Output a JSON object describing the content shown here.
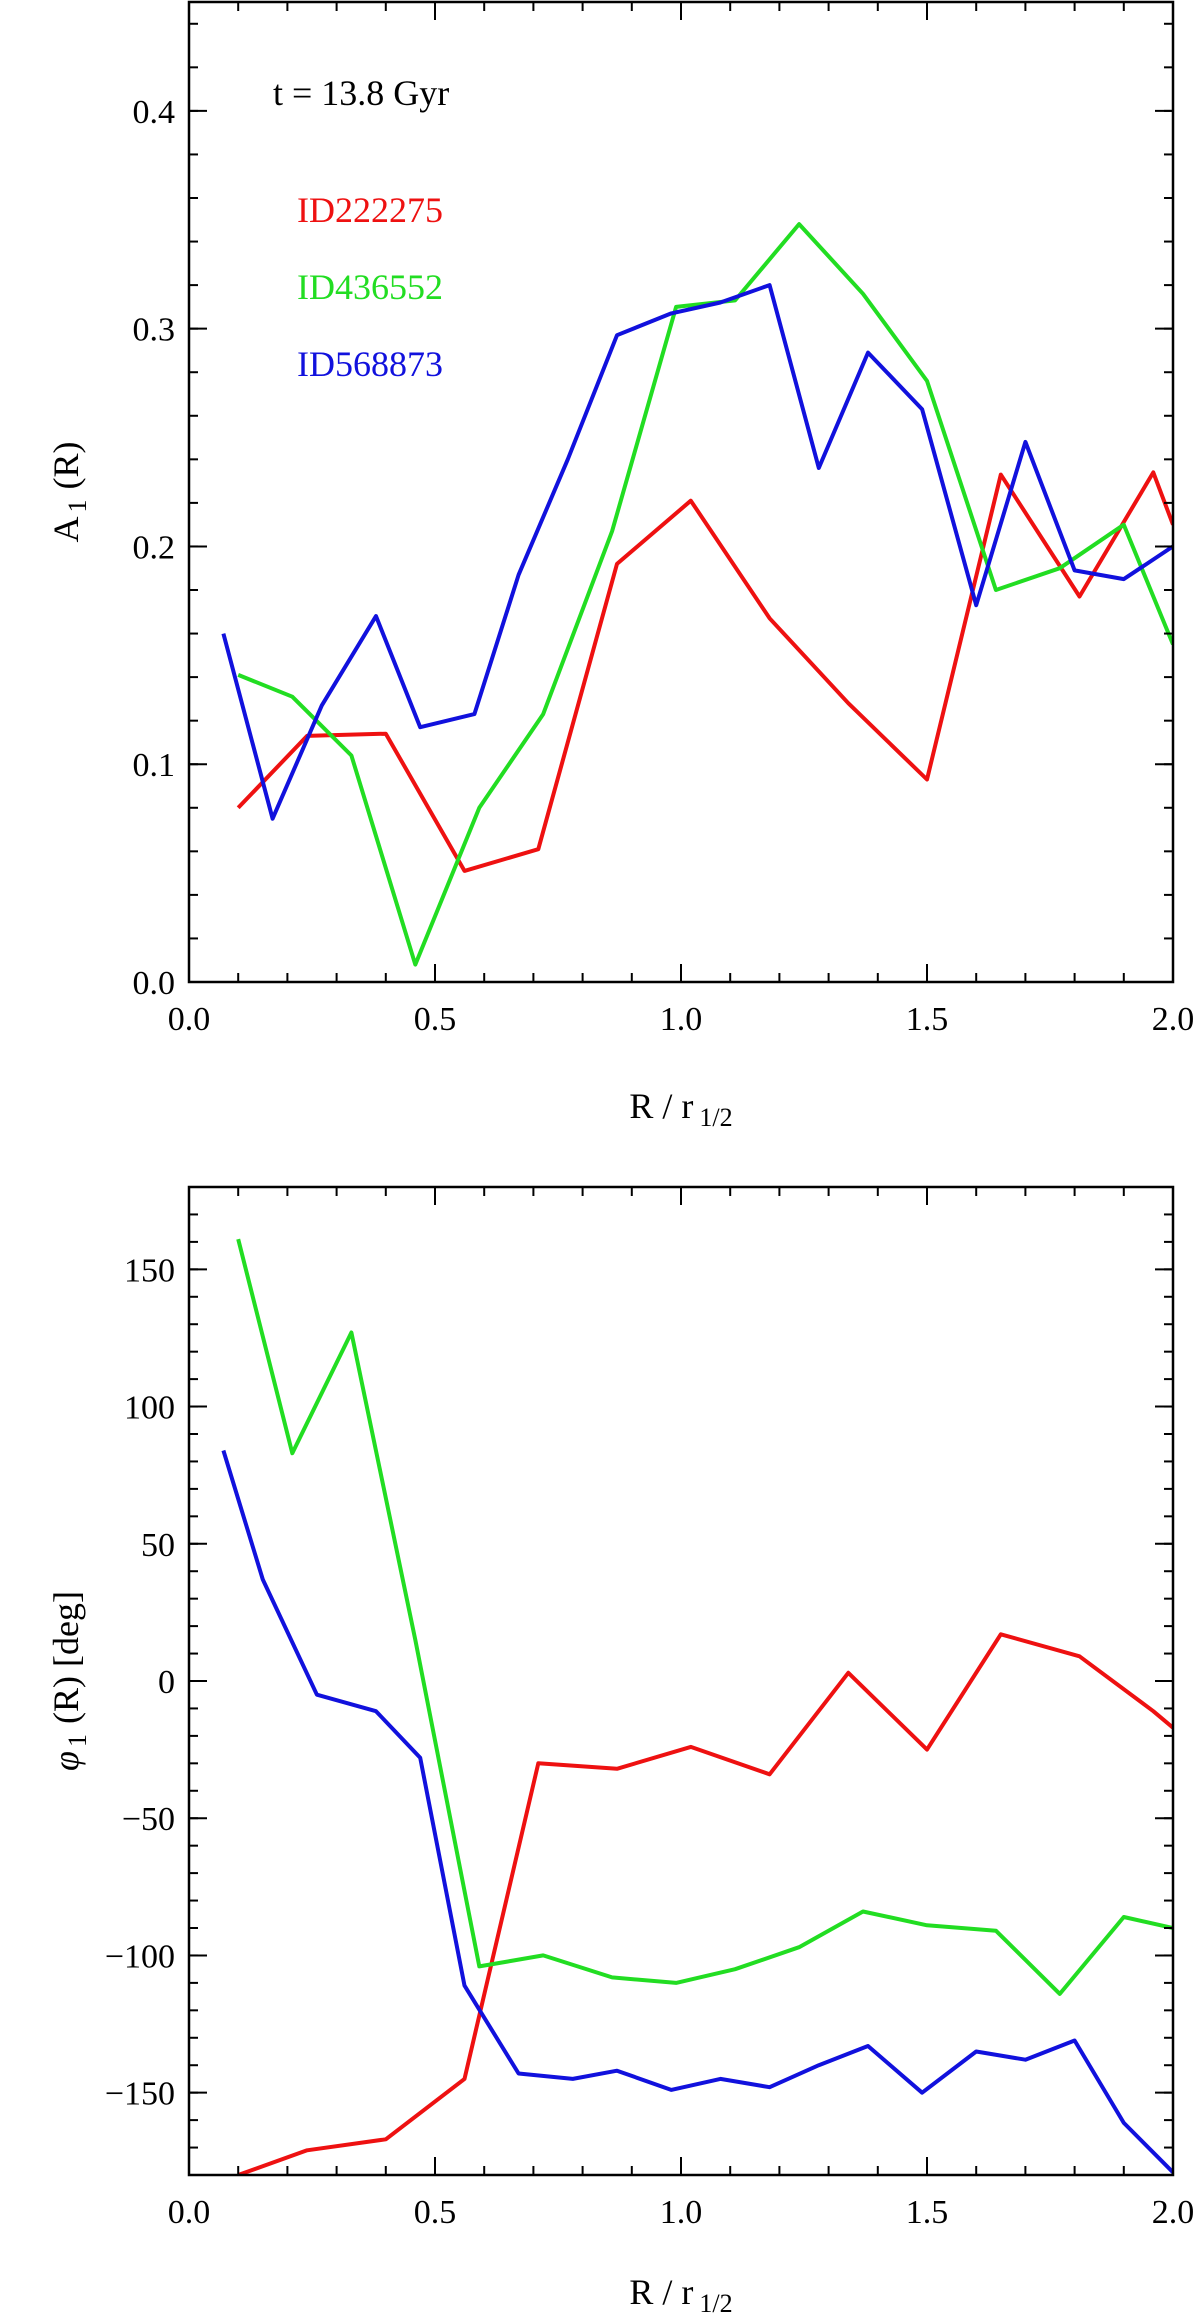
{
  "chart_data": [
    {
      "type": "line",
      "annotation": "t = 13.8 Gyr",
      "xlabel": "R / r",
      "xlabel_sub": "1/2",
      "ylabel": "A",
      "ylabel_sub": "1",
      "ylabel_suffix": "(R)",
      "xlim": [
        0.0,
        2.0
      ],
      "ylim": [
        0.0,
        0.45
      ],
      "xticks": [
        0.0,
        0.5,
        1.0,
        1.5,
        2.0
      ],
      "xtick_labels": [
        "0.0",
        "0.5",
        "1.0",
        "1.5",
        "2.0"
      ],
      "yticks": [
        0.0,
        0.1,
        0.2,
        0.3,
        0.4
      ],
      "ytick_labels": [
        "0.0",
        "0.1",
        "0.2",
        "0.3",
        "0.4"
      ],
      "legend_placement": "top-left",
      "series": [
        {
          "name": "ID222275",
          "color": "#ee1111",
          "x": [
            0.1,
            0.24,
            0.4,
            0.56,
            0.71,
            0.87,
            1.02,
            1.18,
            1.34,
            1.5,
            1.65,
            1.81,
            1.96,
            2.0
          ],
          "y": [
            0.08,
            0.113,
            0.114,
            0.051,
            0.061,
            0.192,
            0.221,
            0.167,
            0.128,
            0.093,
            0.233,
            0.177,
            0.234,
            0.21
          ]
        },
        {
          "name": "ID436552",
          "color": "#22dd22",
          "x": [
            0.1,
            0.21,
            0.33,
            0.46,
            0.59,
            0.72,
            0.86,
            0.99,
            1.11,
            1.24,
            1.37,
            1.5,
            1.64,
            1.77,
            1.9,
            2.0
          ],
          "y": [
            0.141,
            0.131,
            0.104,
            0.008,
            0.08,
            0.123,
            0.207,
            0.31,
            0.313,
            0.348,
            0.316,
            0.276,
            0.18,
            0.19,
            0.21,
            0.155
          ]
        },
        {
          "name": "ID568873",
          "color": "#1111dd",
          "x": [
            0.07,
            0.17,
            0.27,
            0.38,
            0.47,
            0.58,
            0.67,
            0.77,
            0.87,
            0.98,
            1.08,
            1.18,
            1.28,
            1.38,
            1.49,
            1.6,
            1.7,
            1.8,
            1.9,
            2.0
          ],
          "y": [
            0.16,
            0.075,
            0.127,
            0.168,
            0.117,
            0.123,
            0.187,
            0.24,
            0.297,
            0.307,
            0.312,
            0.32,
            0.236,
            0.289,
            0.263,
            0.173,
            0.248,
            0.189,
            0.185,
            0.2
          ]
        }
      ]
    },
    {
      "type": "line",
      "xlabel": "R / r",
      "xlabel_sub": "1/2",
      "ylabel": "φ",
      "ylabel_sub": "1",
      "ylabel_suffix": "(R) [deg]",
      "xlim": [
        0.0,
        2.0
      ],
      "ylim": [
        -180,
        180
      ],
      "xticks": [
        0.0,
        0.5,
        1.0,
        1.5,
        2.0
      ],
      "xtick_labels": [
        "0.0",
        "0.5",
        "1.0",
        "1.5",
        "2.0"
      ],
      "yticks": [
        -150,
        -100,
        -50,
        0,
        50,
        100,
        150
      ],
      "ytick_labels": [
        "−150",
        "−100",
        "−50",
        "0",
        "50",
        "100",
        "150"
      ],
      "series": [
        {
          "name": "ID222275",
          "color": "#ee1111",
          "x": [
            0.1,
            0.24,
            0.4,
            0.56,
            0.71,
            0.87,
            1.02,
            1.18,
            1.34,
            1.5,
            1.65,
            1.81,
            1.96,
            2.0
          ],
          "y": [
            -180,
            -171,
            -167,
            -145,
            -30,
            -32,
            -24,
            -34,
            3,
            -25,
            17,
            9,
            -11,
            -17
          ]
        },
        {
          "name": "ID436552",
          "color": "#22dd22",
          "x": [
            0.1,
            0.21,
            0.33,
            0.46,
            0.59,
            0.72,
            0.86,
            0.99,
            1.11,
            1.24,
            1.37,
            1.5,
            1.64,
            1.77,
            1.9,
            2.0
          ],
          "y": [
            161,
            83,
            127,
            15,
            -104,
            -100,
            -108,
            -110,
            -105,
            -97,
            -84,
            -89,
            -91,
            -114,
            -86,
            -90
          ]
        },
        {
          "name": "ID568873",
          "color": "#1111dd",
          "x": [
            0.07,
            0.15,
            0.26,
            0.38,
            0.47,
            0.56,
            0.67,
            0.78,
            0.87,
            0.98,
            1.08,
            1.18,
            1.28,
            1.38,
            1.49,
            1.6,
            1.7,
            1.8,
            1.9,
            2.0
          ],
          "y": [
            84,
            37,
            -5,
            -11,
            -28,
            -111,
            -143,
            -145,
            -142,
            -149,
            -145,
            -148,
            -140,
            -133,
            -150,
            -135,
            -138,
            -131,
            -161,
            -179
          ]
        }
      ]
    }
  ]
}
